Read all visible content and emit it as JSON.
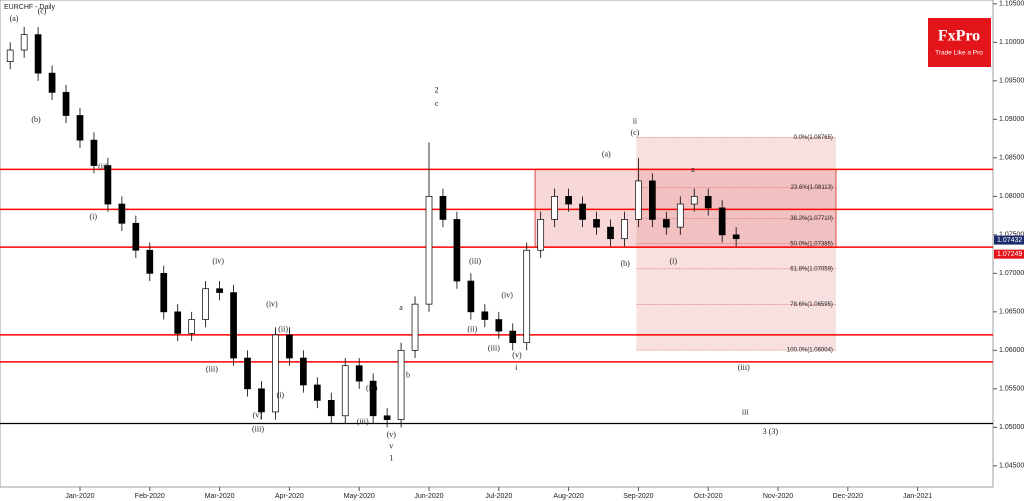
{
  "chart_data": {
    "type": "candlestick",
    "title": "EURCHF - Daily",
    "logo": {
      "name": "FxPro",
      "tagline": "Trade Like a Pro",
      "color": "#e4141b"
    },
    "xlim": [
      -0.146,
      14.08
    ],
    "ylim": [
      1.04225,
      1.1055
    ],
    "xticks": [
      {
        "value": 1,
        "label": "Jan-2020"
      },
      {
        "value": 2,
        "label": "Feb-2020"
      },
      {
        "value": 3,
        "label": "Mar-2020"
      },
      {
        "value": 4,
        "label": "Apr-2020"
      },
      {
        "value": 5,
        "label": "May-2020"
      },
      {
        "value": 6,
        "label": "Jun-2020"
      },
      {
        "value": 7,
        "label": "Jul-2020"
      },
      {
        "value": 8,
        "label": "Aug-2020"
      },
      {
        "value": 9,
        "label": "Sep-2020"
      },
      {
        "value": 10,
        "label": "Oct-2020"
      },
      {
        "value": 11,
        "label": "Nov-2020"
      },
      {
        "value": 12,
        "label": "Dec-2020"
      },
      {
        "value": 13,
        "label": "Jan-2021"
      }
    ],
    "yticks": [
      {
        "value": 1.045,
        "label": "1.04500"
      },
      {
        "value": 1.05,
        "label": "1.05000"
      },
      {
        "value": 1.055,
        "label": "1.05500"
      },
      {
        "value": 1.06,
        "label": "1.06000"
      },
      {
        "value": 1.065,
        "label": "1.06500"
      },
      {
        "value": 1.07,
        "label": "1.07000"
      },
      {
        "value": 1.075,
        "label": "1.07500"
      },
      {
        "value": 1.08,
        "label": "1.08000"
      },
      {
        "value": 1.085,
        "label": "1.08500"
      },
      {
        "value": 1.09,
        "label": "1.09000"
      },
      {
        "value": 1.095,
        "label": "1.09500"
      },
      {
        "value": 1.1,
        "label": "1.10000"
      },
      {
        "value": 1.105,
        "label": "1.10500"
      }
    ],
    "up_color": "#ffffff",
    "down_color": "#000000",
    "x": [
      0,
      0.2,
      0.4,
      0.6,
      0.8,
      1,
      1.2,
      1.4,
      1.6,
      1.8,
      2,
      2.2,
      2.4,
      2.6,
      2.8,
      3,
      3.2,
      3.4,
      3.6,
      3.8,
      4,
      4.2,
      4.4,
      4.6,
      4.8,
      5,
      5.2,
      5.4,
      5.6,
      5.8,
      6,
      6.2,
      6.4,
      6.6,
      6.8,
      7,
      7.2,
      7.4,
      7.6,
      7.8,
      8,
      8.2,
      8.4,
      8.6,
      8.8,
      9,
      9.2,
      9.4,
      9.6,
      9.8,
      10,
      10.2,
      10.4
    ],
    "open": [
      1.0975,
      1.099,
      1.101,
      1.096,
      1.0935,
      1.0905,
      1.0873,
      1.084,
      1.079,
      1.0765,
      1.073,
      1.07,
      1.065,
      1.0622,
      1.064,
      1.068,
      1.0675,
      1.059,
      1.055,
      1.052,
      1.062,
      1.059,
      1.0555,
      1.0535,
      1.0515,
      1.058,
      1.056,
      1.0515,
      1.051,
      1.06,
      1.066,
      1.08,
      1.077,
      1.069,
      1.065,
      1.064,
      1.0625,
      1.061,
      1.073,
      1.077,
      1.08,
      1.079,
      1.077,
      1.076,
      1.0745,
      1.077,
      1.082,
      1.077,
      1.076,
      1.079,
      1.08,
      1.0785,
      1.075
    ],
    "high": [
      1.1,
      1.102,
      1.102,
      1.097,
      1.0945,
      1.0915,
      1.0883,
      1.085,
      1.08,
      1.0775,
      1.074,
      1.071,
      1.066,
      1.065,
      1.069,
      1.069,
      1.0685,
      1.06,
      1.056,
      1.063,
      1.063,
      1.06,
      1.0565,
      1.0545,
      1.059,
      1.059,
      1.057,
      1.0525,
      1.061,
      1.067,
      1.087,
      1.081,
      1.078,
      1.07,
      1.066,
      1.065,
      1.0635,
      1.074,
      1.078,
      1.081,
      1.081,
      1.08,
      1.078,
      1.077,
      1.078,
      1.085,
      1.083,
      1.078,
      1.08,
      1.081,
      1.081,
      1.0795,
      1.076
    ],
    "low": [
      1.0965,
      1.098,
      1.095,
      1.0925,
      1.0895,
      1.0863,
      1.083,
      1.078,
      1.0755,
      1.072,
      1.069,
      1.064,
      1.0612,
      1.0612,
      1.063,
      1.0665,
      1.058,
      1.054,
      1.051,
      1.051,
      1.058,
      1.0545,
      1.0525,
      1.0505,
      1.0505,
      1.055,
      1.0505,
      1.05,
      1.05,
      1.059,
      1.065,
      1.076,
      1.068,
      1.064,
      1.063,
      1.0615,
      1.06,
      1.06,
      1.072,
      1.076,
      1.078,
      1.076,
      1.075,
      1.0735,
      1.0735,
      1.076,
      1.076,
      1.075,
      1.075,
      1.078,
      1.0775,
      1.074,
      1.0735
    ],
    "close": [
      1.099,
      1.101,
      1.096,
      1.0935,
      1.0905,
      1.0873,
      1.084,
      1.079,
      1.0765,
      1.073,
      1.07,
      1.065,
      1.0622,
      1.064,
      1.068,
      1.0675,
      1.059,
      1.055,
      1.052,
      1.062,
      1.059,
      1.0555,
      1.0535,
      1.0515,
      1.058,
      1.056,
      1.0515,
      1.051,
      1.06,
      1.066,
      1.08,
      1.077,
      1.069,
      1.065,
      1.064,
      1.0625,
      1.061,
      1.073,
      1.077,
      1.08,
      1.079,
      1.077,
      1.076,
      1.0745,
      1.077,
      1.082,
      1.077,
      1.076,
      1.079,
      1.08,
      1.0785,
      1.075,
      1.0745
    ],
    "levels": {
      "color": "#ff0000",
      "values": [
        1.0835,
        1.0783,
        1.0734,
        1.062,
        1.0585
      ]
    },
    "support": {
      "color": "#000000",
      "value": 1.0505
    },
    "zone": {
      "color": "#e06060",
      "x": [
        7.52,
        11.83
      ],
      "y": [
        1.0734,
        1.0835
      ]
    },
    "fibonacci": {
      "color": "#e07070",
      "x": [
        8.97,
        11.83
      ],
      "levels": [
        {
          "value": 1.08765,
          "label": "0.0%(1.08765)"
        },
        {
          "value": 1.08113,
          "label": "23.6%(1.08113)"
        },
        {
          "value": 1.0771,
          "label": "38.2%(1.07710)"
        },
        {
          "value": 1.07385,
          "label": "50.0%(1.07385)"
        },
        {
          "value": 1.07059,
          "label": "61.8%(1.07059)"
        },
        {
          "value": 1.06595,
          "label": "78.6%(1.06595)"
        },
        {
          "value": 1.06004,
          "label": "100.0%(1.06004)"
        }
      ]
    },
    "price_labels": [
      {
        "value": 1.07432,
        "label": "1.07432",
        "color": "#1b2a6b"
      },
      {
        "value": 1.07249,
        "label": "1.07249",
        "color": "#e4141b"
      }
    ],
    "annotations": [
      {
        "text": "(a)",
        "x": 0.055,
        "y": 1.103
      },
      {
        "text": "(c)",
        "x": 0.456,
        "y": 1.104
      },
      {
        "text": "(b)",
        "x": 0.37,
        "y": 1.0899
      },
      {
        "text": "(ii)",
        "x": 1.33,
        "y": 1.0838
      },
      {
        "text": "(i)",
        "x": 1.19,
        "y": 1.0773
      },
      {
        "text": "(iv)",
        "x": 2.98,
        "y": 1.0715
      },
      {
        "text": "(iii)",
        "x": 2.89,
        "y": 1.0575
      },
      {
        "text": "(iv)",
        "x": 3.75,
        "y": 1.0659
      },
      {
        "text": "(ii)",
        "x": 3.91,
        "y": 1.0627
      },
      {
        "text": "(i)",
        "x": 3.87,
        "y": 1.0541
      },
      {
        "text": "(v)",
        "x": 3.54,
        "y": 1.0515
      },
      {
        "text": "(iii)",
        "x": 3.55,
        "y": 1.0497
      },
      {
        "text": "(iii)",
        "x": 5.05,
        "y": 1.0507
      },
      {
        "text": "(iv)",
        "x": 5.18,
        "y": 1.055
      },
      {
        "text": "a",
        "x": 5.6,
        "y": 1.0655
      },
      {
        "text": "b",
        "x": 5.7,
        "y": 1.0567
      },
      {
        "text": "(v)",
        "x": 5.46,
        "y": 1.049
      },
      {
        "text": "v",
        "x": 5.46,
        "y": 1.0475
      },
      {
        "text": "1",
        "x": 5.46,
        "y": 1.0459
      },
      {
        "text": "2",
        "x": 6.11,
        "y": 1.0937
      },
      {
        "text": "c",
        "x": 6.11,
        "y": 1.092
      },
      {
        "text": "(iii)",
        "x": 6.66,
        "y": 1.0715
      },
      {
        "text": "(ii)",
        "x": 6.62,
        "y": 1.0627
      },
      {
        "text": "(iv)",
        "x": 7.12,
        "y": 1.0671
      },
      {
        "text": "(iii)",
        "x": 6.93,
        "y": 1.0602
      },
      {
        "text": "(v)",
        "x": 7.26,
        "y": 1.0593
      },
      {
        "text": "i",
        "x": 7.25,
        "y": 1.0577
      },
      {
        "text": "(a)",
        "x": 8.54,
        "y": 1.0854
      },
      {
        "text": "(b)",
        "x": 8.81,
        "y": 1.0712
      },
      {
        "text": "ii",
        "x": 8.95,
        "y": 1.0897
      },
      {
        "text": "(c)",
        "x": 8.95,
        "y": 1.0882
      },
      {
        "text": "a",
        "x": 9.78,
        "y": 1.0834
      },
      {
        "text": "(i)",
        "x": 9.5,
        "y": 1.0715
      },
      {
        "text": "(iii)",
        "x": 10.51,
        "y": 1.0577
      },
      {
        "text": "iii",
        "x": 10.53,
        "y": 1.0519
      },
      {
        "text": "3 (3)",
        "x": 10.89,
        "y": 1.0494
      }
    ]
  }
}
